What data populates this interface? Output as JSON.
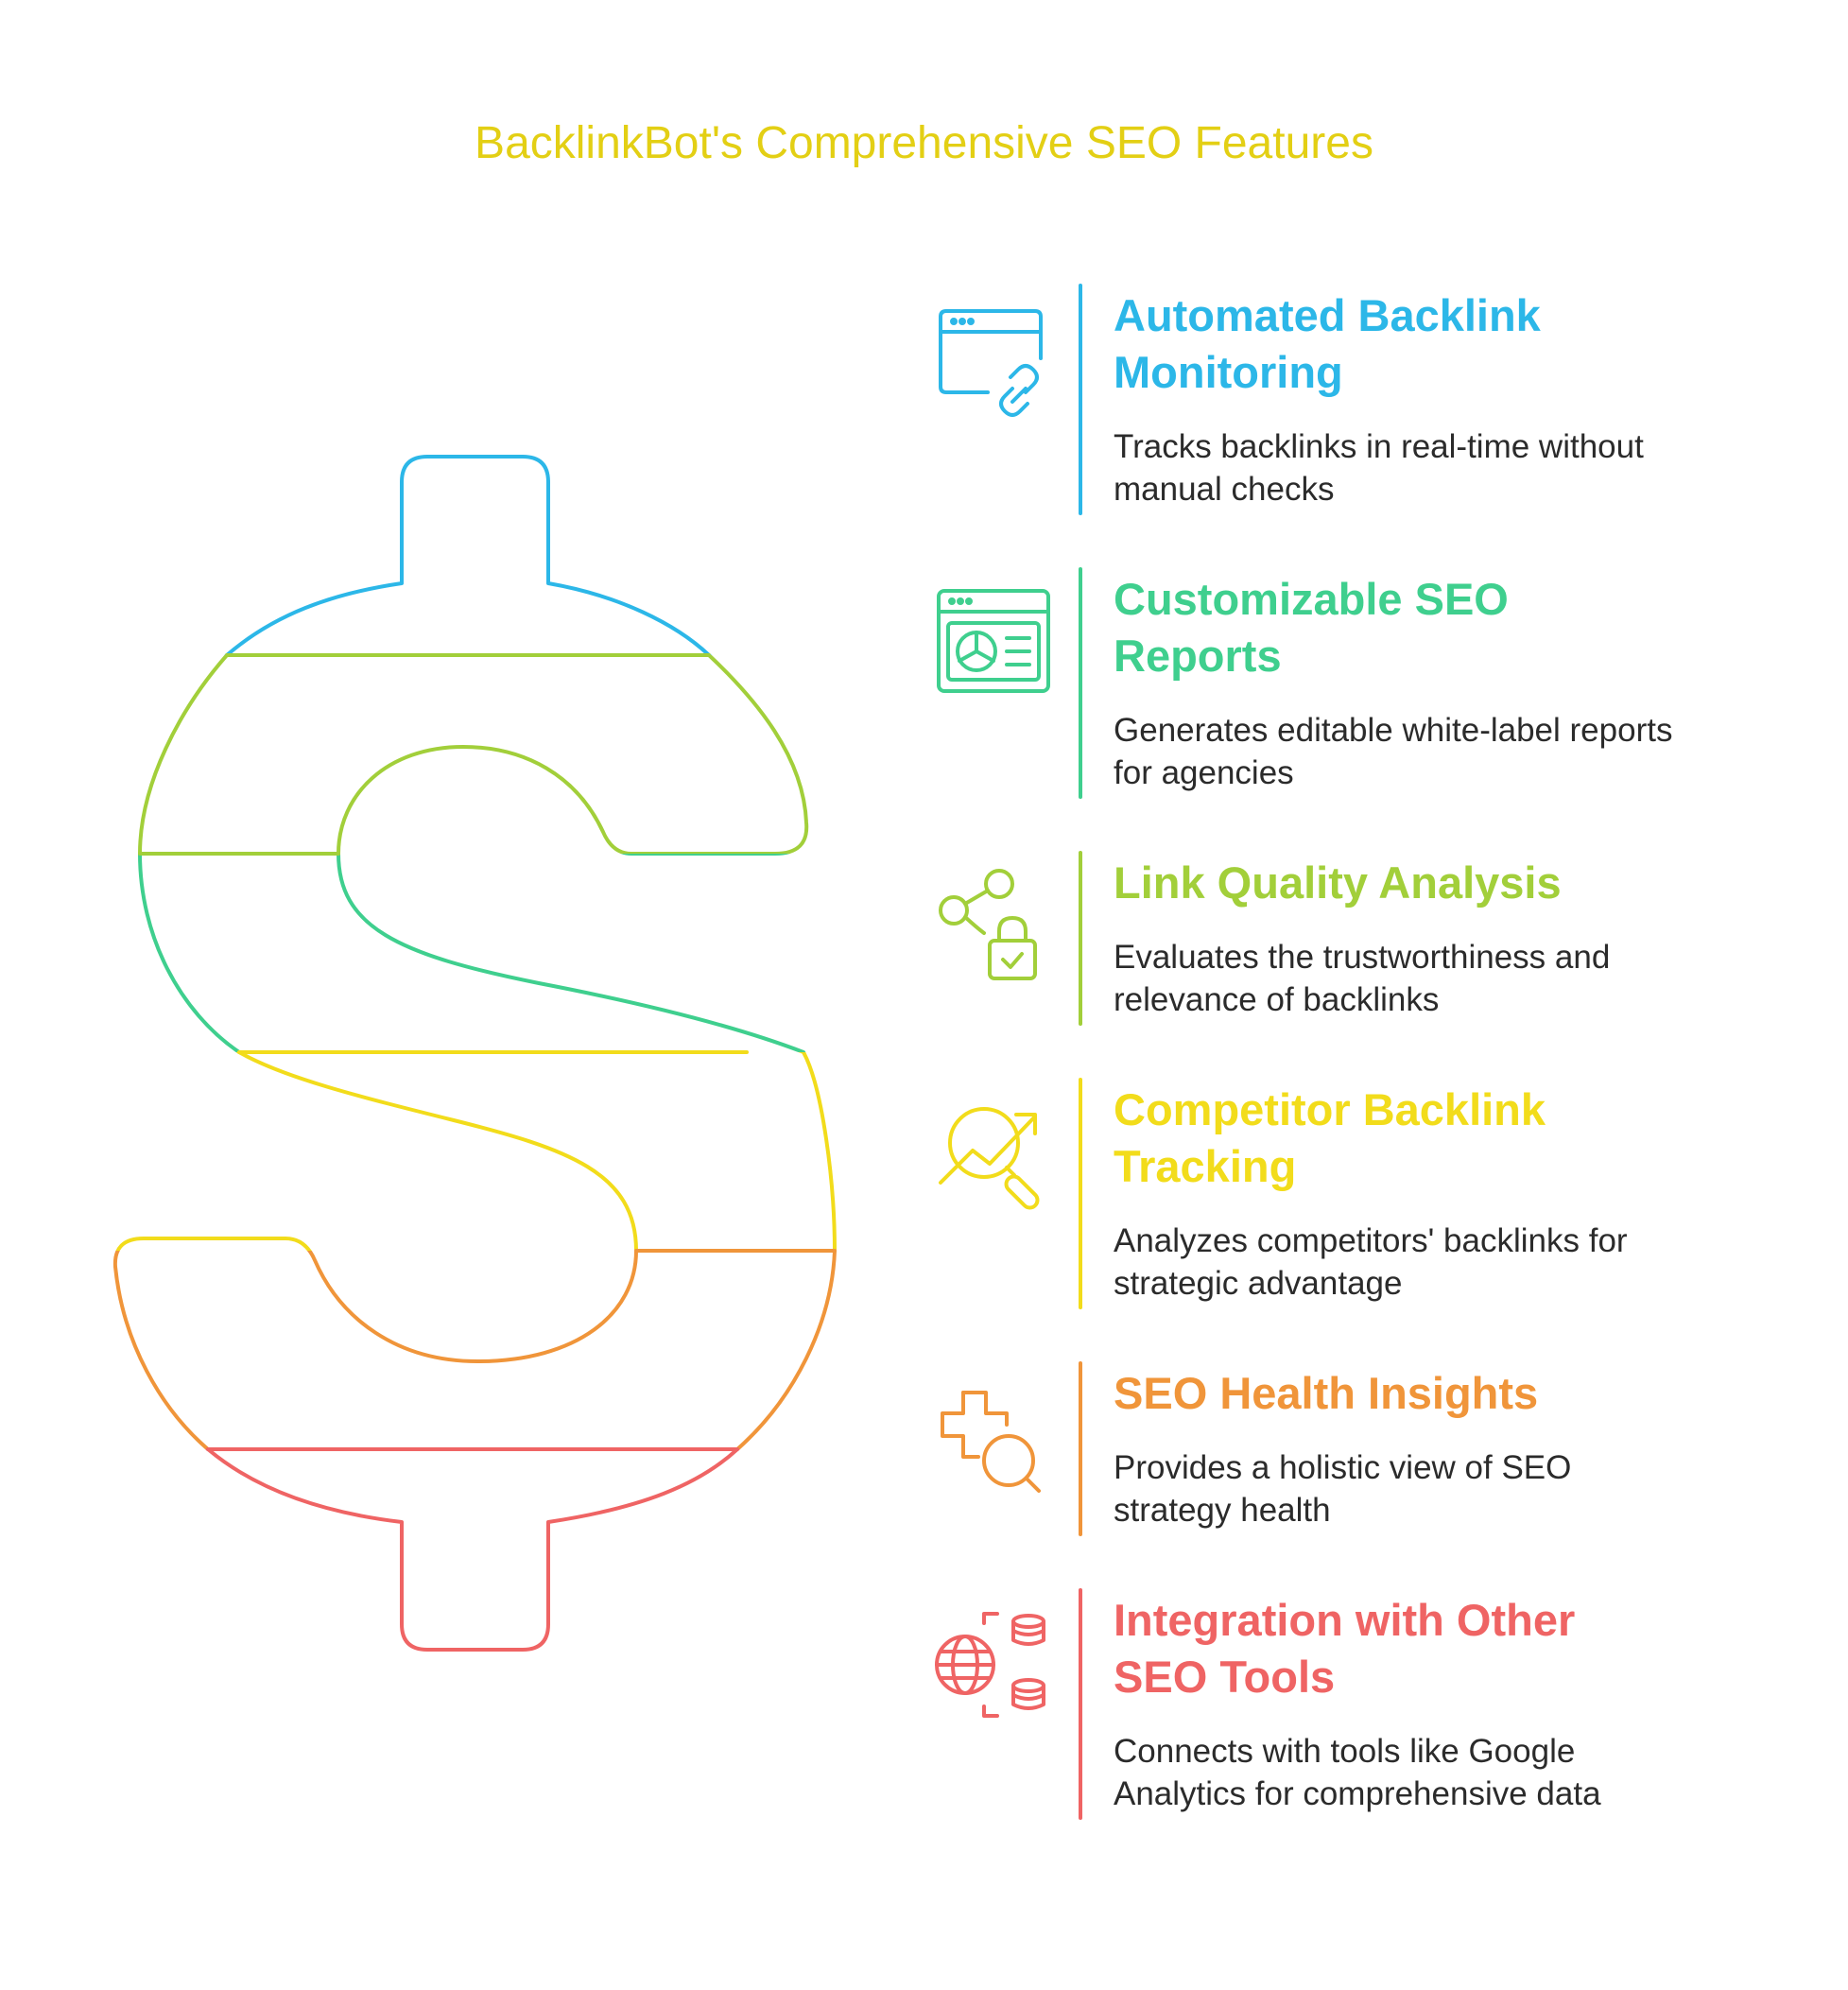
{
  "title": "BacklinkBot's Comprehensive SEO Features",
  "colors": {
    "title": "#e3cf14",
    "blue": "#2cb7e8",
    "green": "#3fcf8e",
    "lime": "#a2cf3a",
    "yellow": "#f2dc1b",
    "orange": "#f0953a",
    "red": "#ef6464",
    "body_text": "#2b2b2b"
  },
  "features": [
    {
      "heading": "Automated Backlink Monitoring",
      "description": "Tracks backlinks in real-time without manual checks",
      "icon": "browser-link-icon",
      "color": "#2cb7e8"
    },
    {
      "heading": "Customizable SEO Reports",
      "description": "Generates editable white-label reports for agencies",
      "icon": "report-chart-icon",
      "color": "#3fcf8e"
    },
    {
      "heading": "Link Quality Analysis",
      "description": "Evaluates the trustworthiness and relevance of backlinks",
      "icon": "share-lock-icon",
      "color": "#a2cf3a"
    },
    {
      "heading": "Competitor Backlink Tracking",
      "description": "Analyzes competitors' backlinks for strategic advantage",
      "icon": "trend-search-icon",
      "color": "#f2dc1b"
    },
    {
      "heading": "SEO Health Insights",
      "description": "Provides a holistic view of SEO strategy health",
      "icon": "health-search-icon",
      "color": "#f0953a"
    },
    {
      "heading": "Integration with Other SEO Tools",
      "description": "Connects with tools like Google Analytics for comprehensive data",
      "icon": "globe-database-icon",
      "color": "#ef6464"
    }
  ]
}
